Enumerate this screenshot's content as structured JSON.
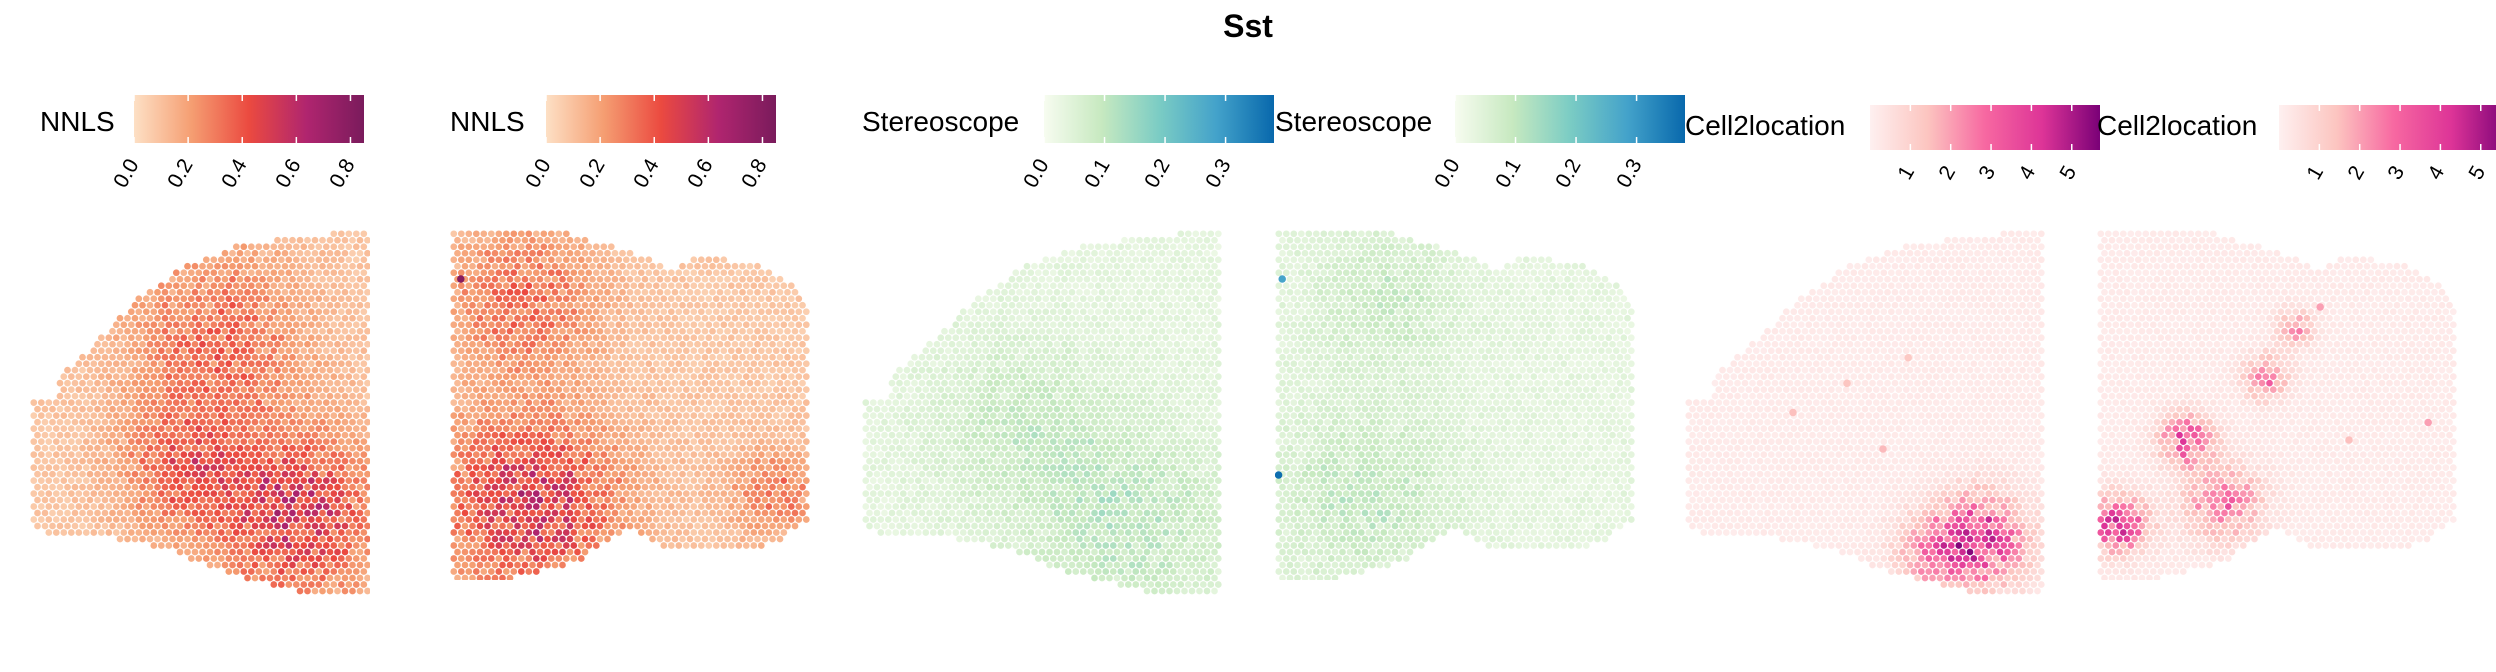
{
  "title": "Sst",
  "chart_data": [
    {
      "type": "heatmap",
      "legend_title": "NNLS",
      "scale_max": 0.85,
      "ticks": [
        0.0,
        0.2,
        0.4,
        0.6,
        0.8
      ],
      "tick_labels": [
        "0.0",
        "0.2",
        "0.4",
        "0.6",
        "0.8"
      ],
      "palette": [
        "#fde0c5",
        "#f59e72",
        "#eb4a40",
        "#b0256f",
        "#7a1b5c"
      ],
      "section": "sagittal-1",
      "bg_level": 0.08,
      "hotspots": [
        {
          "x": 0.78,
          "y": 0.78,
          "r": 0.22,
          "v": 0.42
        },
        {
          "x": 0.45,
          "y": 0.65,
          "r": 0.18,
          "v": 0.28
        },
        {
          "x": 0.55,
          "y": 0.3,
          "r": 0.25,
          "v": 0.25
        }
      ],
      "outliers": []
    },
    {
      "type": "heatmap",
      "legend_title": "NNLS",
      "scale_max": 0.85,
      "ticks": [
        0.0,
        0.2,
        0.4,
        0.6,
        0.8
      ],
      "tick_labels": [
        "0.0",
        "0.2",
        "0.4",
        "0.6",
        "0.8"
      ],
      "palette": [
        "#fde0c5",
        "#f59e72",
        "#eb4a40",
        "#b0256f",
        "#7a1b5c"
      ],
      "section": "sagittal-2",
      "bg_level": 0.08,
      "hotspots": [
        {
          "x": 0.22,
          "y": 0.78,
          "r": 0.25,
          "v": 0.42
        },
        {
          "x": 0.2,
          "y": 0.2,
          "r": 0.2,
          "v": 0.25
        },
        {
          "x": 0.9,
          "y": 0.75,
          "r": 0.12,
          "v": 0.22
        }
      ],
      "outliers": [
        {
          "x": 0.03,
          "y": 0.14,
          "v": 0.8
        }
      ]
    },
    {
      "type": "heatmap",
      "legend_title": "Stereoscope",
      "scale_max": 0.38,
      "ticks": [
        0.0,
        0.1,
        0.2,
        0.3
      ],
      "tick_labels": [
        "0.0",
        "0.1",
        "0.2",
        "0.3"
      ],
      "palette": [
        "#f7fcf0",
        "#c7e9c0",
        "#7bccc4",
        "#43a2ca",
        "#0868ac"
      ],
      "section": "sagittal-1",
      "bg_level": 0.035,
      "hotspots": [
        {
          "x": 0.75,
          "y": 0.8,
          "r": 0.25,
          "v": 0.07
        },
        {
          "x": 0.45,
          "y": 0.55,
          "r": 0.25,
          "v": 0.05
        }
      ],
      "outliers": []
    },
    {
      "type": "heatmap",
      "legend_title": "Stereoscope",
      "scale_max": 0.38,
      "ticks": [
        0.0,
        0.1,
        0.2,
        0.3
      ],
      "tick_labels": [
        "0.0",
        "0.1",
        "0.2",
        "0.3"
      ],
      "palette": [
        "#f7fcf0",
        "#c7e9c0",
        "#7bccc4",
        "#43a2ca",
        "#0868ac"
      ],
      "section": "sagittal-2",
      "bg_level": 0.035,
      "hotspots": [
        {
          "x": 0.25,
          "y": 0.75,
          "r": 0.25,
          "v": 0.06
        },
        {
          "x": 0.3,
          "y": 0.2,
          "r": 0.2,
          "v": 0.05
        }
      ],
      "outliers": [
        {
          "x": 0.02,
          "y": 0.14,
          "v": 0.28
        },
        {
          "x": 0.01,
          "y": 0.7,
          "v": 0.37
        }
      ]
    },
    {
      "type": "heatmap",
      "legend_title": "Cell2location",
      "scale_min": 0.0,
      "scale_max": 5.7,
      "ticks": [
        1,
        2,
        3,
        4,
        5
      ],
      "tick_labels": [
        "1",
        "2",
        "3",
        "4",
        "5"
      ],
      "palette": [
        "#fef0f0",
        "#fcc5c0",
        "#f768a1",
        "#dd3497",
        "#7a0177"
      ],
      "section": "sagittal-1",
      "bg_level": 0.2,
      "hotspots": [
        {
          "x": 0.82,
          "y": 0.85,
          "r": 0.12,
          "v": 3.8
        },
        {
          "x": 0.68,
          "y": 0.88,
          "r": 0.1,
          "v": 1.6
        }
      ],
      "outliers": [
        {
          "x": 0.3,
          "y": 0.5,
          "v": 1.5
        },
        {
          "x": 0.45,
          "y": 0.42,
          "v": 1.4
        },
        {
          "x": 0.55,
          "y": 0.6,
          "v": 1.6
        },
        {
          "x": 0.62,
          "y": 0.35,
          "v": 1.3
        }
      ]
    },
    {
      "type": "heatmap",
      "legend_title": "Cell2location",
      "scale_min": 0.0,
      "scale_max": 5.7,
      "ticks": [
        1,
        2,
        3,
        4,
        5
      ],
      "tick_labels": [
        "1",
        "2",
        "3",
        "4",
        "5"
      ],
      "palette": [
        "#fef0f0",
        "#fcc5c0",
        "#f768a1",
        "#dd3497",
        "#7a0177"
      ],
      "section": "sagittal-2",
      "bg_level": 0.2,
      "hotspots": [
        {
          "x": 0.06,
          "y": 0.84,
          "r": 0.08,
          "v": 3.5
        },
        {
          "x": 0.25,
          "y": 0.6,
          "r": 0.07,
          "v": 3.2
        },
        {
          "x": 0.35,
          "y": 0.78,
          "r": 0.1,
          "v": 2.5
        },
        {
          "x": 0.47,
          "y": 0.42,
          "r": 0.06,
          "v": 2.2
        },
        {
          "x": 0.55,
          "y": 0.28,
          "r": 0.05,
          "v": 1.8
        }
      ],
      "outliers": [
        {
          "x": 0.62,
          "y": 0.22,
          "v": 2.0
        },
        {
          "x": 0.7,
          "y": 0.6,
          "v": 1.5
        },
        {
          "x": 0.92,
          "y": 0.55,
          "v": 2.0
        }
      ]
    }
  ]
}
